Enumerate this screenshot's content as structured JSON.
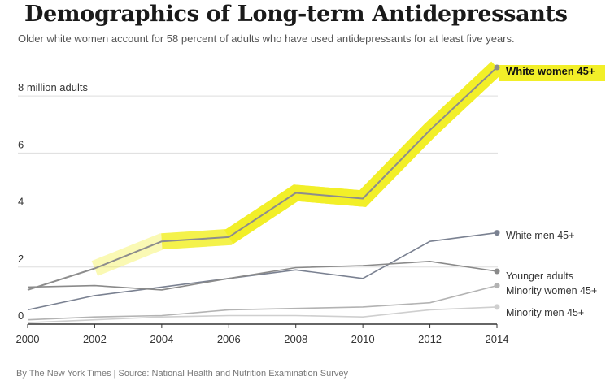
{
  "header": {
    "title": "Demographics of Long-term Antidepressants",
    "subtitle": "Older white women account for 58 percent of adults who have used antidepressants for at least five years."
  },
  "footer": {
    "source": "By The New York Times | Source: National Health and Nutrition Examination Survey"
  },
  "colors": {
    "highlight": "#f2ef28",
    "white_women": "#8d8d8d",
    "white_men": "#7a8191",
    "younger_adults": "#8a8a8a",
    "minority_women": "#b3b3b3",
    "minority_men": "#cfcfcf",
    "grid": "#dddddd",
    "axis": "#333333"
  },
  "chart_data": {
    "type": "line",
    "title": "Demographics of Long-term Antidepressants",
    "subtitle": "Older white women account for 58 percent of adults who have used antidepressants for at least five years.",
    "xlabel": "",
    "ylabel": "million adults",
    "x": [
      2000,
      2002,
      2004,
      2006,
      2008,
      2010,
      2012,
      2014
    ],
    "x_tick_labels": [
      "2000",
      "2002",
      "2004",
      "2006",
      "2008",
      "2010",
      "2012",
      "2014"
    ],
    "ylim": [
      0,
      9
    ],
    "y_ticks": [
      0,
      2,
      4,
      6,
      8
    ],
    "y_tick_labels": [
      "0",
      "2",
      "4",
      "6",
      "8 million adults"
    ],
    "grid": true,
    "series": [
      {
        "name": "White women 45+",
        "values": [
          1.2,
          1.95,
          2.9,
          3.05,
          4.6,
          4.4,
          6.8,
          9.0
        ],
        "highlight": true,
        "end_marker": true
      },
      {
        "name": "White men 45+",
        "values": [
          0.5,
          1.0,
          1.3,
          1.6,
          1.9,
          1.6,
          2.9,
          3.2
        ],
        "end_marker": true
      },
      {
        "name": "Younger adults",
        "values": [
          1.3,
          1.35,
          1.2,
          1.6,
          1.98,
          2.05,
          2.2,
          1.85
        ],
        "end_marker": true
      },
      {
        "name": "Minority women 45+",
        "values": [
          0.15,
          0.25,
          0.3,
          0.5,
          0.55,
          0.6,
          0.75,
          1.35
        ],
        "end_marker": true
      },
      {
        "name": "Minority men 45+",
        "values": [
          0.05,
          0.15,
          0.25,
          0.3,
          0.3,
          0.25,
          0.5,
          0.6
        ],
        "end_marker": true
      }
    ]
  }
}
